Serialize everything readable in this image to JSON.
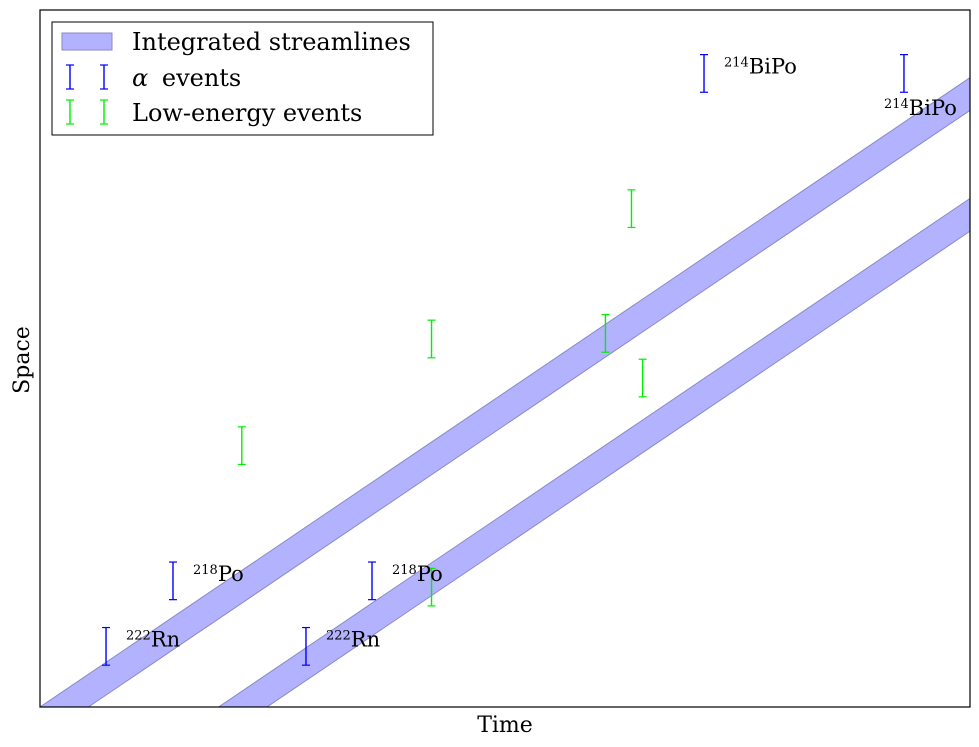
{
  "chart_data": {
    "type": "scatter",
    "xlabel": "Time",
    "ylabel": "Space",
    "xlim": [
      0,
      1
    ],
    "ylim": [
      0,
      1
    ],
    "grid": false,
    "ticks": false,
    "legend": {
      "placement": "top-left",
      "entries": [
        {
          "label": "Integrated streamlines",
          "kind": "band"
        },
        {
          "label_prefix": "α",
          "label": "events",
          "kind": "errorbar-blue"
        },
        {
          "label": "Low-energy events",
          "kind": "errorbar-green"
        }
      ]
    },
    "streamlines": [
      {
        "x_start": 0.0,
        "y_start": 0.0,
        "slope": 0.903,
        "width": 0.052
      },
      {
        "x_start": 0.192,
        "y_start": 0.0,
        "slope": 0.903,
        "width": 0.052
      }
    ],
    "alpha_events": [
      {
        "x": 0.071,
        "y": 0.087,
        "half_height": 0.027,
        "mass": "222",
        "element": "Rn",
        "label_pos": "right"
      },
      {
        "x": 0.143,
        "y": 0.181,
        "half_height": 0.027,
        "mass": "218",
        "element": "Po",
        "label_pos": "right"
      },
      {
        "x": 0.286,
        "y": 0.087,
        "half_height": 0.027,
        "mass": "222",
        "element": "Rn",
        "label_pos": "right"
      },
      {
        "x": 0.357,
        "y": 0.181,
        "half_height": 0.027,
        "mass": "218",
        "element": "Po",
        "label_pos": "right"
      },
      {
        "x": 0.714,
        "y": 0.909,
        "half_height": 0.027,
        "mass": "214",
        "element": "BiPo",
        "label_pos": "right"
      },
      {
        "x": 0.929,
        "y": 0.909,
        "half_height": 0.027,
        "mass": "214",
        "element": "BiPo",
        "label_pos": "below"
      }
    ],
    "low_energy_events": [
      {
        "x": 0.217,
        "y": 0.375,
        "half_height": 0.027
      },
      {
        "x": 0.421,
        "y": 0.528,
        "half_height": 0.027
      },
      {
        "x": 0.421,
        "y": 0.172,
        "half_height": 0.027
      },
      {
        "x": 0.636,
        "y": 0.715,
        "half_height": 0.027
      },
      {
        "x": 0.608,
        "y": 0.536,
        "half_height": 0.027
      },
      {
        "x": 0.648,
        "y": 0.472,
        "half_height": 0.027
      }
    ],
    "colors": {
      "band_fill": "#b2b2ff",
      "band_edge": "#8a8ac6",
      "alpha": "#0000ff",
      "low_energy": "#00ee00",
      "axes": "#000000"
    }
  }
}
